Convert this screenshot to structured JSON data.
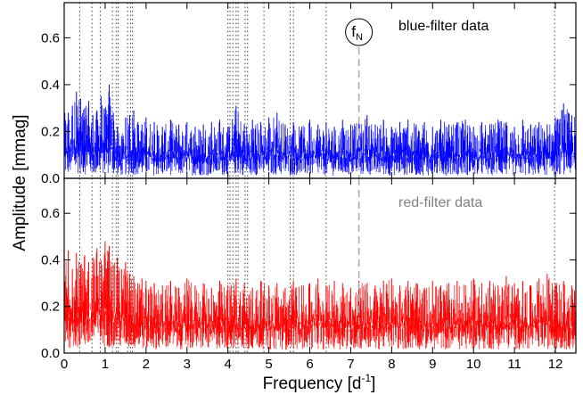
{
  "chart_data": [
    {
      "type": "line",
      "panel": "top",
      "annotation": "blue-filter data",
      "series": [
        {
          "color": "#0000ff",
          "x": [
            0.1,
            0.2,
            0.3,
            0.4,
            0.5,
            0.6,
            0.7,
            0.8,
            0.9,
            1.0,
            1.1,
            1.2,
            1.3,
            1.4,
            1.5,
            1.6,
            1.7,
            1.8,
            1.9,
            2.0,
            2.2,
            2.4,
            2.6,
            2.8,
            3.0,
            3.2,
            3.4,
            3.6,
            3.8,
            4.0,
            4.2,
            4.4,
            4.6,
            4.8,
            5.0,
            5.2,
            5.4,
            5.6,
            5.8,
            6.0,
            6.2,
            6.4,
            6.6,
            6.8,
            7.0,
            7.2,
            7.4,
            7.6,
            7.8,
            8.0,
            8.2,
            8.4,
            8.6,
            8.8,
            9.0,
            9.2,
            9.4,
            9.6,
            9.8,
            10.0,
            10.2,
            10.4,
            10.6,
            10.8,
            11.0,
            11.2,
            11.4,
            11.6,
            11.8,
            12.0,
            12.2,
            12.4
          ],
          "y": [
            0.28,
            0.31,
            0.37,
            0.34,
            0.3,
            0.33,
            0.27,
            0.29,
            0.35,
            0.3,
            0.4,
            0.28,
            0.22,
            0.18,
            0.26,
            0.27,
            0.29,
            0.24,
            0.23,
            0.26,
            0.24,
            0.22,
            0.25,
            0.23,
            0.24,
            0.22,
            0.23,
            0.24,
            0.25,
            0.22,
            0.31,
            0.23,
            0.25,
            0.24,
            0.26,
            0.28,
            0.23,
            0.24,
            0.22,
            0.25,
            0.23,
            0.24,
            0.22,
            0.25,
            0.23,
            0.24,
            0.27,
            0.23,
            0.25,
            0.22,
            0.24,
            0.25,
            0.23,
            0.24,
            0.22,
            0.25,
            0.23,
            0.24,
            0.25,
            0.22,
            0.24,
            0.23,
            0.25,
            0.24,
            0.22,
            0.25,
            0.23,
            0.24,
            0.23,
            0.26,
            0.32,
            0.27
          ]
        }
      ],
      "vlines": [
        0.38,
        0.68,
        0.88,
        1.18,
        1.27,
        1.32,
        1.55,
        1.62,
        1.67,
        4.0,
        4.05,
        4.12,
        4.2,
        4.25,
        4.42,
        4.48,
        4.88,
        5.52,
        5.6,
        6.4,
        11.98
      ],
      "nyquist": {
        "x": 7.2,
        "label": "f",
        "sub": "N"
      },
      "xlim": [
        0,
        12.5
      ],
      "ylim": [
        0,
        0.75
      ],
      "yticks": [
        "0.0",
        "0.2",
        "0.4",
        "0.6"
      ],
      "ytick_values": [
        0.0,
        0.2,
        0.4,
        0.6
      ]
    },
    {
      "type": "line",
      "panel": "bottom",
      "annotation": "red-filter data",
      "series": [
        {
          "color": "#ff0000",
          "x": [
            0.1,
            0.2,
            0.3,
            0.4,
            0.5,
            0.6,
            0.7,
            0.8,
            0.9,
            1.0,
            1.1,
            1.2,
            1.3,
            1.4,
            1.5,
            1.6,
            1.7,
            1.8,
            1.9,
            2.0,
            2.2,
            2.4,
            2.6,
            2.8,
            3.0,
            3.2,
            3.4,
            3.6,
            3.8,
            4.0,
            4.2,
            4.4,
            4.6,
            4.8,
            5.0,
            5.2,
            5.4,
            5.6,
            5.8,
            6.0,
            6.2,
            6.4,
            6.6,
            6.8,
            7.0,
            7.2,
            7.4,
            7.6,
            7.8,
            8.0,
            8.2,
            8.4,
            8.6,
            8.8,
            9.0,
            9.2,
            9.4,
            9.6,
            9.8,
            10.0,
            10.2,
            10.4,
            10.6,
            10.8,
            11.0,
            11.2,
            11.4,
            11.6,
            11.8,
            12.0,
            12.2,
            12.4
          ],
          "y": [
            0.44,
            0.36,
            0.43,
            0.38,
            0.42,
            0.39,
            0.41,
            0.45,
            0.4,
            0.48,
            0.46,
            0.38,
            0.41,
            0.36,
            0.39,
            0.34,
            0.33,
            0.3,
            0.32,
            0.31,
            0.3,
            0.29,
            0.31,
            0.28,
            0.32,
            0.29,
            0.3,
            0.28,
            0.31,
            0.29,
            0.32,
            0.3,
            0.28,
            0.31,
            0.29,
            0.3,
            0.28,
            0.31,
            0.29,
            0.3,
            0.32,
            0.29,
            0.31,
            0.3,
            0.28,
            0.31,
            0.3,
            0.29,
            0.31,
            0.32,
            0.29,
            0.31,
            0.3,
            0.28,
            0.31,
            0.29,
            0.3,
            0.31,
            0.29,
            0.32,
            0.3,
            0.31,
            0.29,
            0.33,
            0.3,
            0.31,
            0.29,
            0.32,
            0.34,
            0.3,
            0.31,
            0.29
          ]
        }
      ],
      "vlines": [
        0.38,
        0.68,
        0.88,
        1.18,
        1.27,
        1.32,
        1.55,
        1.62,
        1.67,
        4.0,
        4.05,
        4.12,
        4.2,
        4.25,
        4.42,
        4.48,
        4.88,
        5.52,
        5.6,
        6.4,
        11.98
      ],
      "nyquist": {
        "x": 7.2
      },
      "xlim": [
        0,
        12.5
      ],
      "ylim": [
        0,
        0.75
      ],
      "yticks": [
        "0.0",
        "0.2",
        "0.4",
        "0.6"
      ],
      "ytick_values": [
        0.0,
        0.2,
        0.4,
        0.6
      ],
      "xticks": [
        "0",
        "1",
        "2",
        "3",
        "4",
        "5",
        "6",
        "7",
        "8",
        "9",
        "10",
        "11",
        "12"
      ],
      "xtick_values": [
        0,
        1,
        2,
        3,
        4,
        5,
        6,
        7,
        8,
        9,
        10,
        11,
        12
      ]
    }
  ],
  "axis_labels": {
    "xlabel": "Frequency [d",
    "xlabel_sup": "-1",
    "xlabel_end": "]",
    "ylabel": "Amplitude [mmag]"
  }
}
